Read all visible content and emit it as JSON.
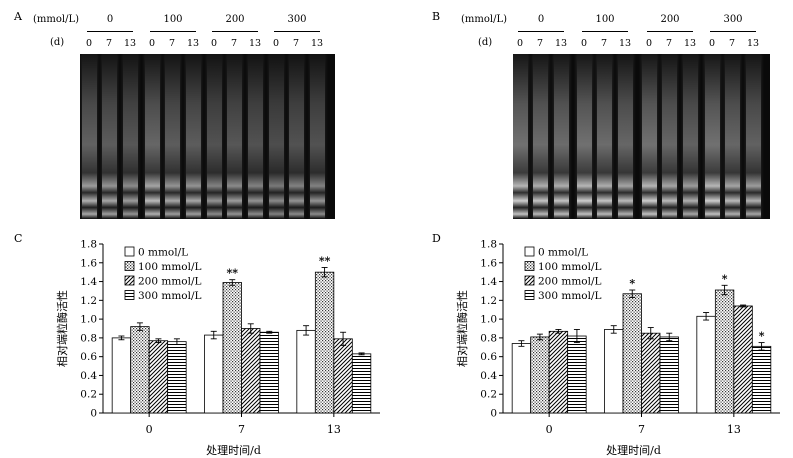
{
  "panels": {
    "A": {
      "letter": "A",
      "conc_label": "(mmol/L)",
      "day_label": "(d)",
      "concentrations": [
        "0",
        "100",
        "200",
        "300"
      ],
      "days": [
        "0",
        "7",
        "13"
      ]
    },
    "B": {
      "letter": "B",
      "conc_label": "(mmol/L)",
      "day_label": "(d)",
      "concentrations": [
        "0",
        "100",
        "200",
        "300"
      ],
      "days": [
        "0",
        "7",
        "13"
      ]
    }
  },
  "colors": {
    "gel_bg": "#0a0a0a",
    "bar_fill": "#ffffff",
    "stroke": "#000000"
  },
  "chart_data": [
    {
      "letter": "C",
      "type": "bar",
      "categories": [
        "0",
        "7",
        "13"
      ],
      "xlabel": "处理时间/d",
      "ylabel": "相对端粒酶活性",
      "ylim": [
        0,
        1.8
      ],
      "yticks": [
        "0",
        "0.2",
        "0.4",
        "0.6",
        "0.8",
        "1.0",
        "1.2",
        "1.4",
        "1.6",
        "1.8"
      ],
      "series": [
        {
          "name": "0 mmol/L",
          "pattern": "white",
          "values": [
            0.8,
            0.83,
            0.88
          ],
          "errors": [
            0.02,
            0.04,
            0.05
          ]
        },
        {
          "name": "100 mmol/L",
          "pattern": "dots",
          "values": [
            0.92,
            1.39,
            1.5
          ],
          "errors": [
            0.04,
            0.03,
            0.05
          ]
        },
        {
          "name": "200 mmol/L",
          "pattern": "diagonal",
          "values": [
            0.77,
            0.9,
            0.79
          ],
          "errors": [
            0.02,
            0.05,
            0.07
          ]
        },
        {
          "name": "300 mmol/L",
          "pattern": "horizontal",
          "values": [
            0.76,
            0.86,
            0.63
          ],
          "errors": [
            0.03,
            0.01,
            0.01
          ]
        }
      ],
      "annotations": [
        {
          "series": 1,
          "category": 1,
          "text": "**"
        },
        {
          "series": 1,
          "category": 2,
          "text": "**"
        }
      ]
    },
    {
      "letter": "D",
      "type": "bar",
      "categories": [
        "0",
        "7",
        "13"
      ],
      "xlabel": "处理时间/d",
      "ylabel": "相对端粒酶活性",
      "ylim": [
        0,
        1.8
      ],
      "yticks": [
        "0",
        "0.2",
        "0.4",
        "0.6",
        "0.8",
        "1.0",
        "1.2",
        "1.4",
        "1.6",
        "1.8"
      ],
      "series": [
        {
          "name": "0 mmol/L",
          "pattern": "white",
          "values": [
            0.74,
            0.89,
            1.03
          ],
          "errors": [
            0.03,
            0.04,
            0.04
          ]
        },
        {
          "name": "100 mmol/L",
          "pattern": "dots",
          "values": [
            0.81,
            1.27,
            1.31
          ],
          "errors": [
            0.03,
            0.04,
            0.05
          ]
        },
        {
          "name": "200 mmol/L",
          "pattern": "diagonal",
          "values": [
            0.87,
            0.85,
            1.14
          ],
          "errors": [
            0.02,
            0.06,
            0.01
          ]
        },
        {
          "name": "300 mmol/L",
          "pattern": "horizontal",
          "values": [
            0.82,
            0.81,
            0.71
          ],
          "errors": [
            0.07,
            0.04,
            0.04
          ]
        }
      ],
      "annotations": [
        {
          "series": 1,
          "category": 1,
          "text": "*"
        },
        {
          "series": 1,
          "category": 2,
          "text": "*"
        },
        {
          "series": 3,
          "category": 2,
          "text": "*"
        }
      ]
    }
  ]
}
